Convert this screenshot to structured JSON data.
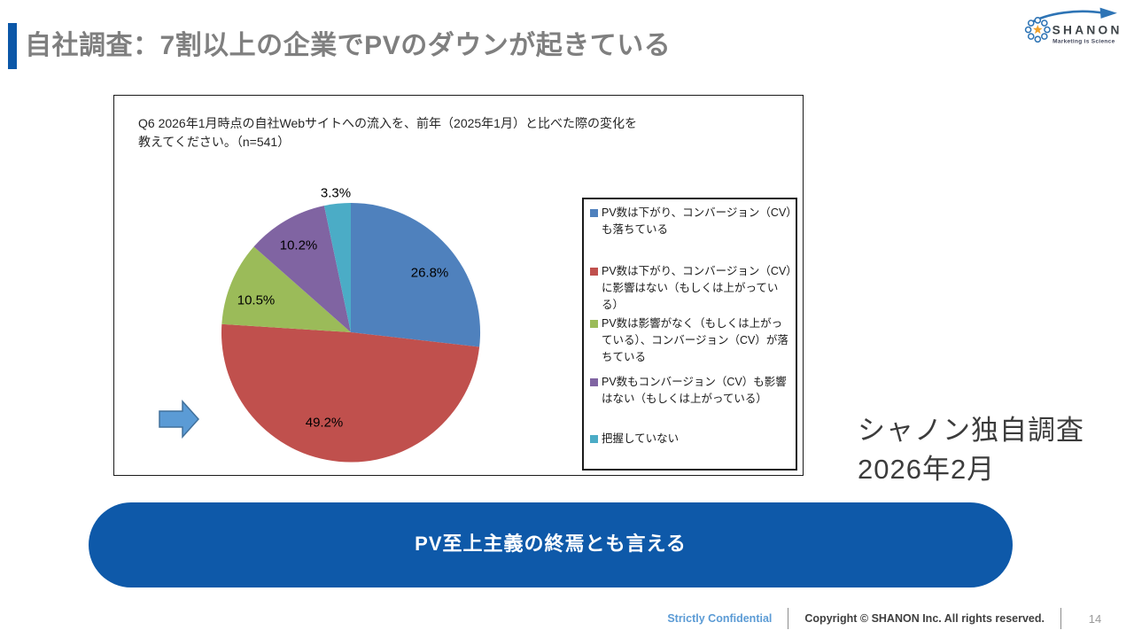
{
  "slide": {
    "title": "自社調査：7割以上の企業でPVのダウンが起きている"
  },
  "logo": {
    "name": "SHANON",
    "tagline": "Marketing is Science"
  },
  "chart_panel": {
    "question_line1": "Q6 2026年1月時点の自社Webサイトへの流入を、前年（2025年1月）と比べた際の変化を",
    "question_line2": "教えてください。（n=541）"
  },
  "chart_data": {
    "type": "pie",
    "title": "Q6 2026年1月時点の自社Webサイトへの流入を、前年（2025年1月）と比べた際の変化を教えてください。（n=541）",
    "n": 541,
    "labels": [
      "PV数は下がり、コンバージョン（CV）も落ちている",
      "PV数は下がり、コンバージョン（CV）に影響はない（もしくは上がっている）",
      "PV数は影響がなく（もしくは上がっている）、コンバージョン（CV）が落ちている",
      "PV数もコンバージョン（CV）も影響はない（もしくは上がっている）",
      "把握していない"
    ],
    "values": [
      26.8,
      49.2,
      10.5,
      10.2,
      3.3
    ],
    "value_labels": [
      "26.8%",
      "49.2%",
      "10.5%",
      "10.2%",
      "3.3%"
    ],
    "colors": [
      "#4F81BD",
      "#C0504D",
      "#9BBB59",
      "#8064A2",
      "#4BACC6"
    ],
    "start_angle_deg": 0,
    "direction": "clockwise",
    "legend_position": "right"
  },
  "side_note": {
    "line1": "シャノン独自調査",
    "line2": "2026年2月"
  },
  "callout": {
    "text": "PV至上主義の終焉とも言える",
    "color": "#0E59A9"
  },
  "footer": {
    "confidential": "Strictly Confidential",
    "copyright": "Copyright © SHANON Inc. All rights reserved.",
    "page": "14"
  },
  "theme": {
    "accent_blue": "#0B57A8",
    "title_gray": "#7F7F7F",
    "confidential_blue": "#5B9BD5",
    "arrow_fill": "#5B9BD5",
    "arrow_border": "#41719C"
  }
}
